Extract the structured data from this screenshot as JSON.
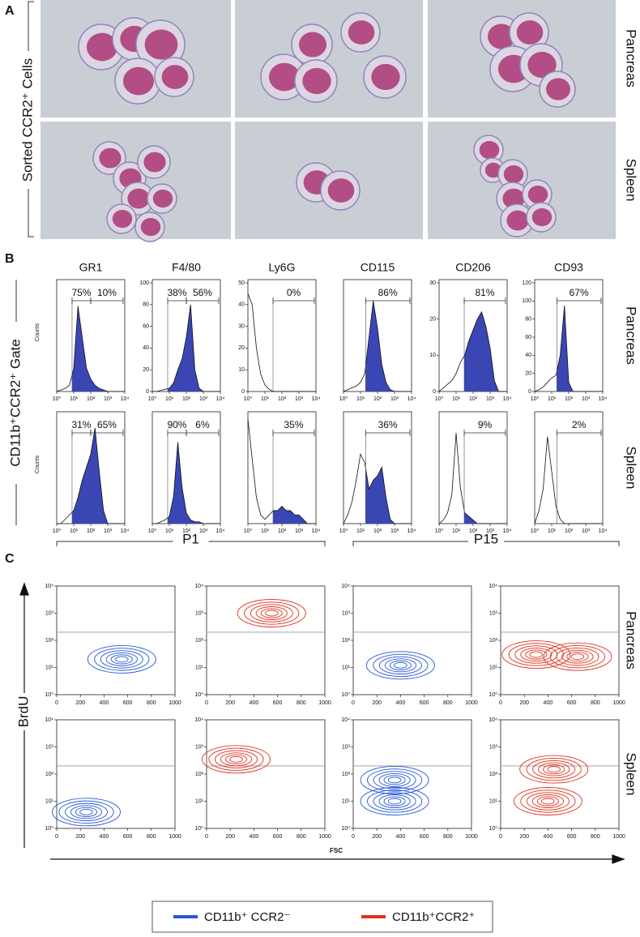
{
  "panel_a": {
    "label": "A",
    "y_label": "Sorted CCR2⁺ Cells",
    "rows": [
      "Pancreas",
      "Spleen"
    ]
  },
  "panel_b": {
    "label": "B",
    "y_label": "CD11b⁺CCR2⁺ Gate",
    "rows": [
      "Pancreas",
      "Spleen"
    ],
    "columns": [
      "GR1",
      "F4/80",
      "Ly6G",
      "CD115",
      "CD206",
      "CD93"
    ],
    "counts_label": "Counts",
    "xscale": "log",
    "xlim": [
      1,
      10000
    ],
    "xticks": [
      {
        "value": 1,
        "label": "10⁰"
      },
      {
        "value": 10,
        "label": "10¹"
      },
      {
        "value": 100,
        "label": "10²"
      },
      {
        "value": 1000,
        "label": "10³"
      },
      {
        "value": 10000,
        "label": "10⁴"
      }
    ],
    "x": [
      1,
      1.78,
      3.16,
      5.62,
      10,
      17.8,
      31.6,
      56.2,
      100,
      178,
      316,
      562,
      1000,
      1780,
      3160,
      5620,
      10000
    ],
    "fill_color": "#3a46b4",
    "plots": [
      [
        {
          "ylim": [
            0,
            70
          ],
          "values": [
            0,
            1,
            2,
            4,
            15,
            55,
            35,
            15,
            8,
            4,
            2,
            1,
            0,
            0,
            0,
            0,
            0
          ],
          "shade": [
            8,
            8000
          ],
          "gates": [
            {
              "label": "75%",
              "range": [
                8,
                100
              ]
            },
            {
              "label": "10%",
              "range": [
                100,
                8000
              ]
            }
          ]
        },
        {
          "ylim": [
            0,
            100
          ],
          "yticks": [
            0,
            20,
            40,
            60,
            80,
            100
          ],
          "values": [
            0,
            0,
            1,
            2,
            3,
            8,
            20,
            30,
            50,
            80,
            20,
            3,
            0,
            0,
            0,
            0,
            0
          ],
          "shade": [
            8,
            8000
          ],
          "gates": [
            {
              "label": "38%",
              "range": [
                8,
                100
              ]
            },
            {
              "label": "56%",
              "range": [
                100,
                8000
              ]
            }
          ]
        },
        {
          "ylim": [
            0,
            50
          ],
          "yticks": [
            0,
            10,
            20,
            30,
            40,
            50
          ],
          "values": [
            45,
            40,
            20,
            8,
            3,
            1,
            0,
            0,
            0,
            0,
            0,
            0,
            0,
            0,
            0,
            0,
            0
          ],
          "gates": [
            {
              "label": "0%",
              "range": [
                30,
                8000
              ]
            }
          ]
        },
        {
          "ylim": [
            0,
            60
          ],
          "values": [
            0,
            1,
            2,
            3,
            5,
            10,
            30,
            50,
            35,
            15,
            5,
            1,
            0,
            0,
            0,
            0,
            0
          ],
          "shade": [
            20,
            8000
          ],
          "gates": [
            {
              "label": "86%",
              "range": [
                20,
                8000
              ]
            }
          ]
        },
        {
          "ylim": [
            0,
            30
          ],
          "yticks": [
            0,
            10,
            20,
            30
          ],
          "values": [
            0,
            1,
            2,
            3,
            5,
            8,
            10,
            14,
            17,
            20,
            22,
            18,
            12,
            3,
            0,
            0,
            0
          ],
          "shade": [
            30,
            8000
          ],
          "gates": [
            {
              "label": "81%",
              "range": [
                30,
                8000
              ]
            }
          ]
        },
        {
          "ylim": [
            0,
            120
          ],
          "yticks": [
            0,
            20,
            40,
            60,
            80,
            100,
            120
          ],
          "values": [
            0,
            2,
            5,
            10,
            15,
            18,
            40,
            95,
            10,
            0,
            0,
            0,
            0,
            0,
            0,
            0,
            0
          ],
          "shade": [
            20,
            8000
          ],
          "gates": [
            {
              "label": "67%",
              "range": [
                20,
                8000
              ]
            }
          ]
        }
      ],
      [
        {
          "ylim": [
            0,
            25
          ],
          "values": [
            0,
            0,
            1,
            2,
            3,
            6,
            10,
            13,
            16,
            22,
            12,
            3,
            0,
            0,
            0,
            0,
            0
          ],
          "shade": [
            8,
            8000
          ],
          "gates": [
            {
              "label": "31%",
              "range": [
                8,
                100
              ]
            },
            {
              "label": "65%",
              "range": [
                100,
                8000
              ]
            }
          ]
        },
        {
          "ylim": [
            0,
            60
          ],
          "values": [
            0,
            0,
            1,
            2,
            4,
            15,
            45,
            20,
            6,
            2,
            1,
            1,
            0,
            0,
            0,
            0,
            0
          ],
          "shade": [
            8,
            8000
          ],
          "gates": [
            {
              "label": "90%",
              "range": [
                8,
                100
              ]
            },
            {
              "label": "6%",
              "range": [
                100,
                8000
              ]
            }
          ]
        },
        {
          "ylim": [
            0,
            25
          ],
          "values": [
            24,
            15,
            6,
            2,
            1,
            2,
            3,
            3,
            4,
            3,
            3,
            2,
            2,
            1,
            0,
            0,
            0
          ],
          "shade": [
            30,
            8000
          ],
          "gates": [
            {
              "label": "35%",
              "range": [
                30,
                8000
              ]
            }
          ]
        },
        {
          "ylim": [
            0,
            25
          ],
          "values": [
            0,
            2,
            5,
            10,
            16,
            14,
            8,
            10,
            11,
            13,
            6,
            1,
            0,
            0,
            0,
            0,
            0
          ],
          "shade": [
            20,
            8000
          ],
          "gates": [
            {
              "label": "36%",
              "range": [
                20,
                8000
              ]
            }
          ]
        },
        {
          "ylim": [
            0,
            30
          ],
          "values": [
            0,
            1,
            3,
            8,
            25,
            10,
            3,
            2,
            1,
            0,
            0,
            0,
            0,
            0,
            0,
            0,
            0
          ],
          "shade": [
            30,
            8000
          ],
          "gates": [
            {
              "label": "9%",
              "range": [
                30,
                8000
              ]
            }
          ]
        },
        {
          "ylim": [
            0,
            25
          ],
          "values": [
            0,
            3,
            8,
            20,
            12,
            4,
            1,
            0,
            0,
            0,
            0,
            0,
            0,
            0,
            0,
            0,
            0
          ],
          "gates": [
            {
              "label": "2%",
              "range": [
                20,
                8000
              ]
            }
          ]
        }
      ]
    ]
  },
  "panel_c": {
    "label": "C",
    "groups": [
      "P1",
      "P15"
    ],
    "rows": [
      "Pancreas",
      "Spleen"
    ],
    "y_label": "BrdU",
    "x_label": "FSC",
    "xlim": [
      0,
      1000
    ],
    "xticks": [
      0,
      200,
      400,
      600,
      800,
      1000
    ],
    "yscale": "log",
    "ylim": [
      1,
      10000
    ],
    "yticks": [
      {
        "value": 1,
        "label": "10⁰"
      },
      {
        "value": 10,
        "label": "10¹"
      },
      {
        "value": 100,
        "label": "10²"
      },
      {
        "value": 1000,
        "label": "10³"
      },
      {
        "value": 10000,
        "label": "10⁴"
      }
    ],
    "threshold": 200,
    "series": [
      {
        "name": "CD11b⁺ CCR2⁻",
        "color": "#2456d8"
      },
      {
        "name": "CD11b⁺CCR2⁺",
        "color": "#e2301c"
      }
    ],
    "plots": [
      [
        {
          "clusters": [
            {
              "fsc": 550,
              "brdu": 20
            }
          ]
        },
        {
          "clusters": [
            {
              "fsc": 550,
              "brdu": 1000
            }
          ]
        },
        {
          "clusters": [
            {
              "fsc": 400,
              "brdu": 12
            }
          ]
        },
        {
          "clusters": [
            {
              "fsc": 300,
              "brdu": 30
            },
            {
              "fsc": 650,
              "brdu": 25
            }
          ]
        }
      ],
      [
        {
          "clusters": [
            {
              "fsc": 250,
              "brdu": 4
            }
          ]
        },
        {
          "clusters": [
            {
              "fsc": 250,
              "brdu": 350
            }
          ]
        },
        {
          "clusters": [
            {
              "fsc": 350,
              "brdu": 10
            },
            {
              "fsc": 350,
              "brdu": 60
            }
          ]
        },
        {
          "clusters": [
            {
              "fsc": 450,
              "brdu": 150
            },
            {
              "fsc": 400,
              "brdu": 10
            }
          ]
        }
      ]
    ]
  }
}
